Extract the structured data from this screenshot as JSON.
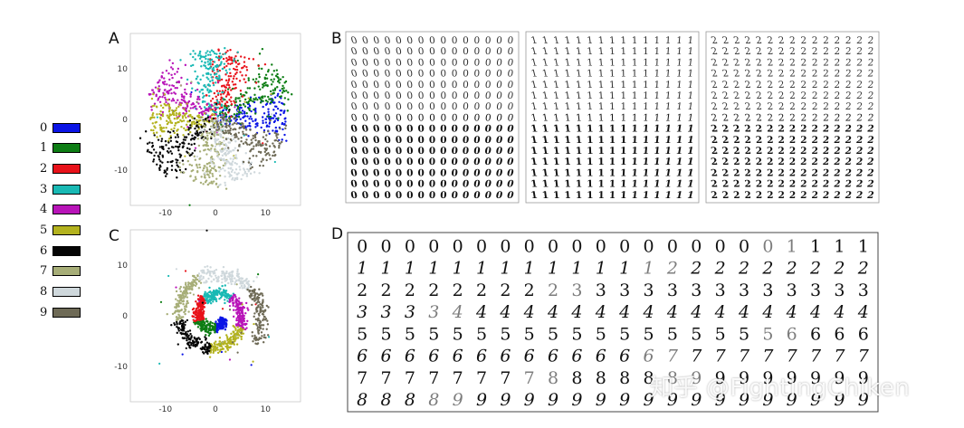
{
  "panels": {
    "a": "A",
    "b": "B",
    "c": "C",
    "d": "D"
  },
  "legend": [
    {
      "label": "0",
      "color": "#0a14e6"
    },
    {
      "label": "1",
      "color": "#0d7d14"
    },
    {
      "label": "2",
      "color": "#e8121a"
    },
    {
      "label": "3",
      "color": "#19b9b4"
    },
    {
      "label": "4",
      "color": "#b814b8"
    },
    {
      "label": "5",
      "color": "#b3b21e"
    },
    {
      "label": "6",
      "color": "#050505"
    },
    {
      "label": "7",
      "color": "#a7ae78"
    },
    {
      "label": "8",
      "color": "#cfd8dc"
    },
    {
      "label": "9",
      "color": "#6e6a56"
    }
  ],
  "chart_data": [
    {
      "type": "scatter",
      "panel": "A",
      "shape": "10-arm star, one arm per digit class",
      "xticks": [
        "-10",
        "0",
        "10"
      ],
      "yticks": [
        "10",
        "0",
        "-10"
      ],
      "xlim": [
        -17,
        17
      ],
      "ylim": [
        -17,
        17
      ],
      "series": [
        {
          "class": "0",
          "arm_angle_deg": 5,
          "arm_length": 14
        },
        {
          "class": "1",
          "arm_angle_deg": 30,
          "arm_length": 16
        },
        {
          "class": "2",
          "arm_angle_deg": 72,
          "arm_length": 14
        },
        {
          "class": "3",
          "arm_angle_deg": 97,
          "arm_length": 14
        },
        {
          "class": "4",
          "arm_angle_deg": 148,
          "arm_length": 14
        },
        {
          "class": "5",
          "arm_angle_deg": 178,
          "arm_length": 13
        },
        {
          "class": "6",
          "arm_angle_deg": 215,
          "arm_length": 15
        },
        {
          "class": "7",
          "arm_angle_deg": 258,
          "arm_length": 13
        },
        {
          "class": "8",
          "arm_angle_deg": 290,
          "arm_length": 13
        },
        {
          "class": "9",
          "arm_angle_deg": 330,
          "arm_length": 14
        }
      ]
    },
    {
      "type": "scatter",
      "panel": "C",
      "shape": "spiral, consecutive digit classes along the arc from center outwards",
      "xticks": [
        "-10",
        "0",
        "10"
      ],
      "yticks": [
        "10",
        "0",
        "-10"
      ],
      "xlim": [
        -17,
        17
      ],
      "ylim": [
        -17,
        17
      ],
      "class_order_along_spiral": [
        "0",
        "1",
        "2",
        "3",
        "4",
        "5",
        "6",
        "7",
        "8",
        "9"
      ]
    }
  ],
  "panel_b": {
    "grids": [
      {
        "digit": "0",
        "rows": 15,
        "cols": 15
      },
      {
        "digit": "1",
        "rows": 15,
        "cols": 15
      },
      {
        "digit": "2",
        "rows": 15,
        "cols": 15
      }
    ]
  },
  "panel_d": {
    "rows": [
      "0000000000000000001111",
      "1111111111111222222222",
      "2222222223333333333333",
      "3333444444444444444444",
      "5555555555555555556666",
      "6666666666666777777777",
      "7777777788888899999999",
      "8888999999999999999999"
    ]
  },
  "watermark": "知乎 @FightingChiken"
}
